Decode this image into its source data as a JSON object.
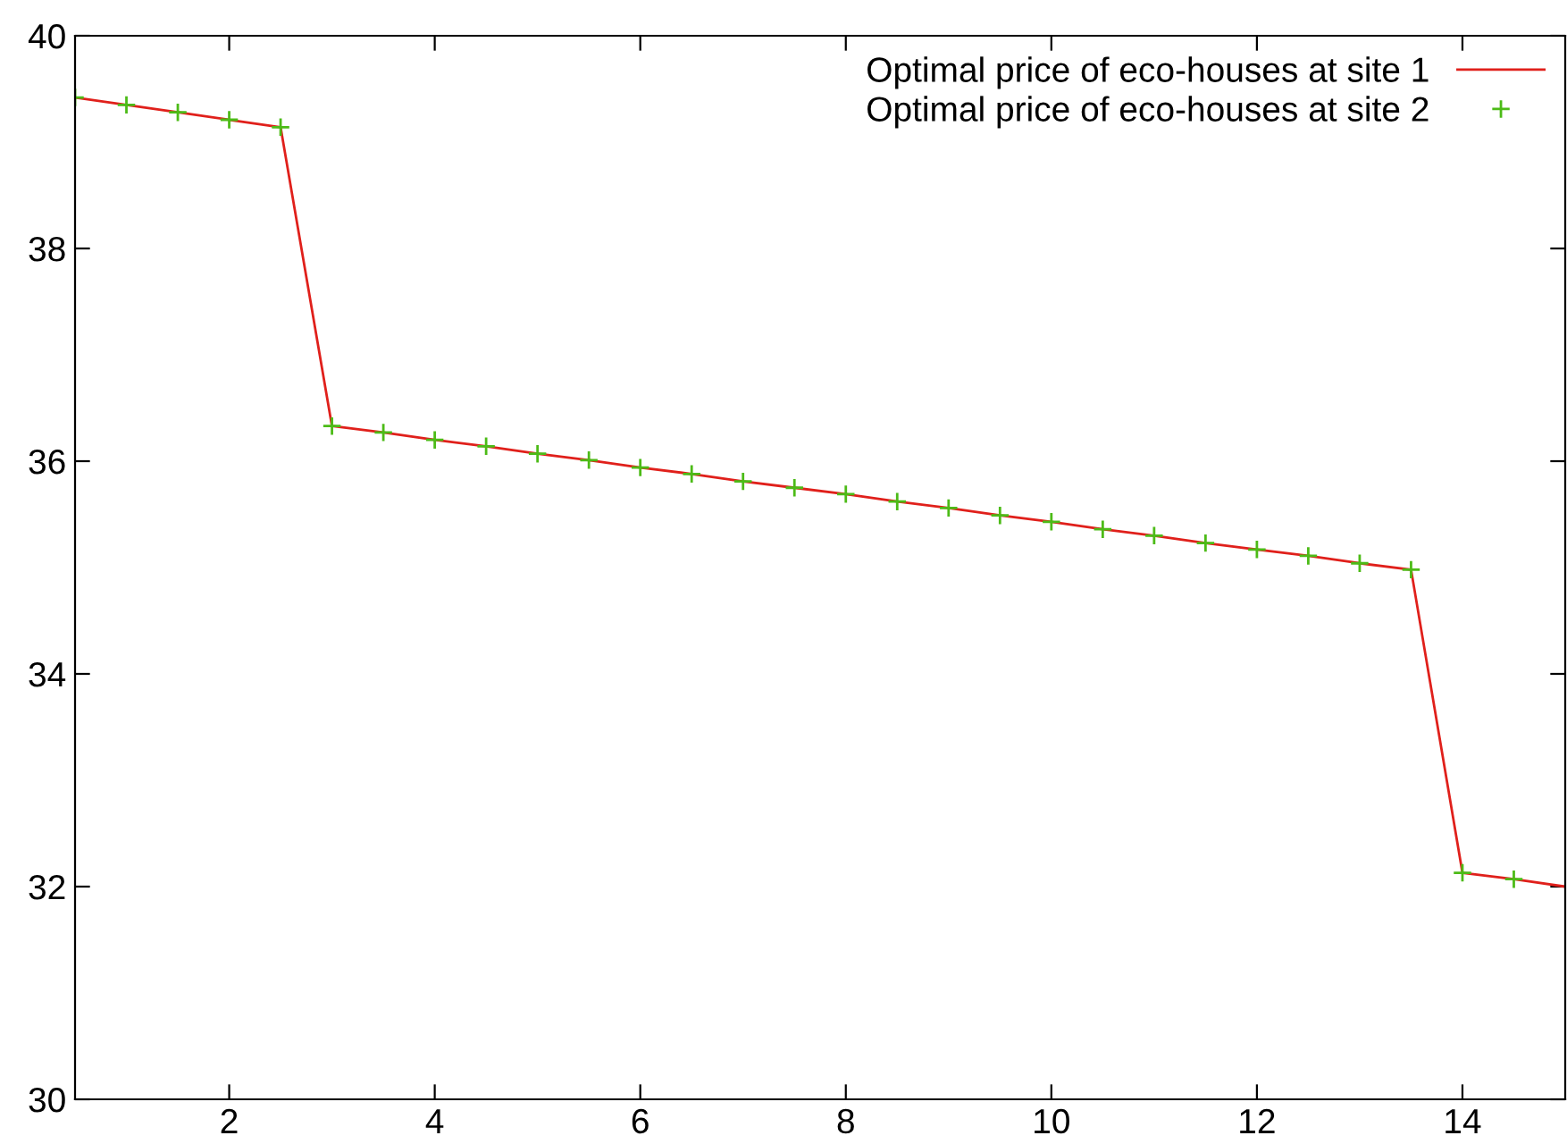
{
  "chart_data": {
    "type": "line",
    "xlim": [
      0.5,
      15
    ],
    "ylim": [
      30,
      40
    ],
    "xticks": [
      2,
      4,
      6,
      8,
      10,
      12,
      14
    ],
    "yticks": [
      30,
      32,
      34,
      36,
      38,
      40
    ],
    "grid": false,
    "legend": "top right",
    "series": [
      {
        "name": "Optimal price of eco-houses at site 1",
        "color": "#e0201b",
        "marker": "none",
        "line_style": "solid",
        "x": [
          0.5,
          1,
          1.5,
          2,
          2.5,
          3,
          3.5,
          4,
          4.5,
          5,
          5.5,
          6,
          6.5,
          7,
          7.5,
          8,
          8.5,
          9,
          9.5,
          10,
          10.5,
          11,
          11.5,
          12,
          12.5,
          13,
          13.5,
          14,
          14.5,
          15
        ],
        "values": [
          39.42,
          39.35,
          39.28,
          39.21,
          39.14,
          36.33,
          36.27,
          36.2,
          36.14,
          36.07,
          36.01,
          35.94,
          35.88,
          35.81,
          35.75,
          35.69,
          35.62,
          35.56,
          35.49,
          35.43,
          35.36,
          35.3,
          35.23,
          35.17,
          35.11,
          35.04,
          34.98,
          32.13,
          32.07,
          32.0
        ]
      },
      {
        "name": "Optimal price of eco-houses at site 2",
        "type": "scatter",
        "color": "#4cbb17",
        "marker": "cross",
        "x": [
          0.5,
          1,
          1.5,
          2,
          2.5,
          3,
          3.5,
          4,
          4.5,
          5,
          5.5,
          6,
          6.5,
          7,
          7.5,
          8,
          8.5,
          9,
          9.5,
          10,
          10.5,
          11,
          11.5,
          12,
          12.5,
          13,
          13.5,
          14,
          14.5
        ],
        "values": [
          39.42,
          39.35,
          39.28,
          39.21,
          39.14,
          36.33,
          36.27,
          36.2,
          36.14,
          36.07,
          36.01,
          35.94,
          35.88,
          35.81,
          35.75,
          35.69,
          35.62,
          35.56,
          35.49,
          35.43,
          35.36,
          35.3,
          35.23,
          35.17,
          35.11,
          35.04,
          34.98,
          32.13,
          32.07
        ]
      }
    ]
  }
}
